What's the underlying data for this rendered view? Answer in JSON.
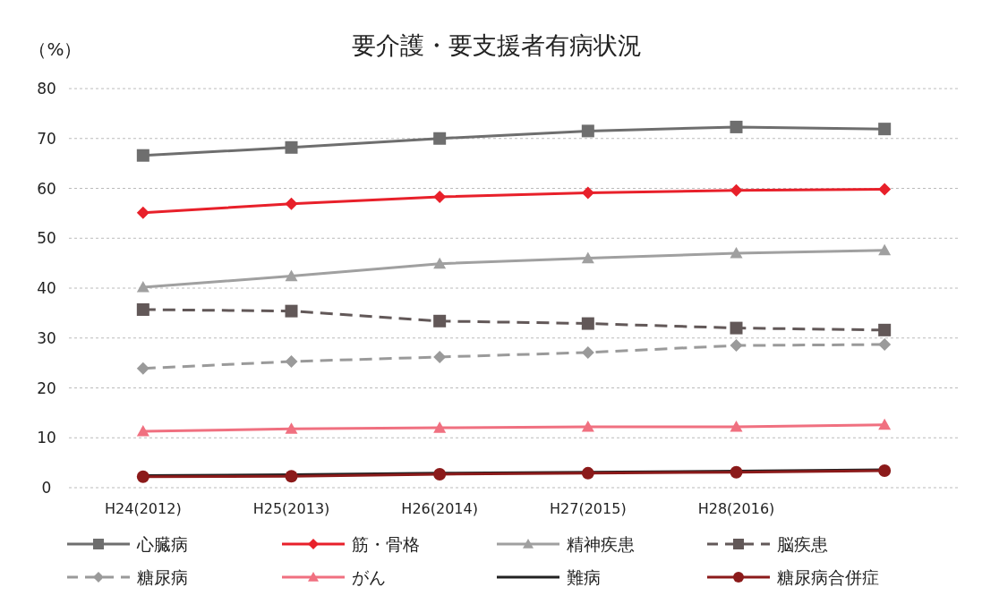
{
  "chart_data": {
    "type": "line",
    "title": "要介護・要支援者有病状況",
    "ylabel": "（%）",
    "categories": [
      "H24(2012)",
      "H25(2013)",
      "H26(2014)",
      "H27(2015)",
      "H28(2016)",
      null
    ],
    "ylim": [
      0,
      80
    ],
    "yticks": [
      0,
      10,
      20,
      30,
      40,
      50,
      60,
      70,
      80
    ],
    "grid": "y",
    "legend": "bottom",
    "series": [
      {
        "name": "心臓病",
        "color": "#6e6e6e",
        "marker": "square",
        "line_style": "solid",
        "values": [
          66.6,
          68.2,
          70.0,
          71.5,
          72.3,
          71.9
        ]
      },
      {
        "name": "筋・骨格",
        "color": "#e8202a",
        "marker": "diamond",
        "line_style": "solid",
        "values": [
          55.1,
          56.9,
          58.3,
          59.1,
          59.6,
          59.8
        ]
      },
      {
        "name": "精神疾患",
        "color": "#a0a0a0",
        "marker": "triangle",
        "line_style": "solid",
        "values": [
          40.2,
          42.4,
          44.9,
          46.0,
          47.0,
          47.6
        ]
      },
      {
        "name": "脳疾患",
        "color": "#625858",
        "marker": "square",
        "line_style": "dashed",
        "values": [
          35.7,
          35.4,
          33.4,
          32.9,
          32.0,
          31.6
        ]
      },
      {
        "name": "糖尿病",
        "color": "#9a9a9a",
        "marker": "diamond",
        "line_style": "dashed",
        "values": [
          23.9,
          25.3,
          26.2,
          27.1,
          28.5,
          28.7
        ]
      },
      {
        "name": "がん",
        "color": "#f07080",
        "marker": "triangle",
        "line_style": "solid",
        "values": [
          11.3,
          11.8,
          12.0,
          12.2,
          12.2,
          12.6
        ]
      },
      {
        "name": "難病",
        "color": "#222222",
        "marker": "none",
        "line_style": "solid",
        "values": [
          2.4,
          2.6,
          2.9,
          3.1,
          3.3,
          3.6
        ]
      },
      {
        "name": "糖尿病合併症",
        "color": "#8b1a1a",
        "marker": "circle",
        "line_style": "solid",
        "values": [
          2.2,
          2.3,
          2.7,
          2.9,
          3.1,
          3.4
        ]
      }
    ]
  }
}
